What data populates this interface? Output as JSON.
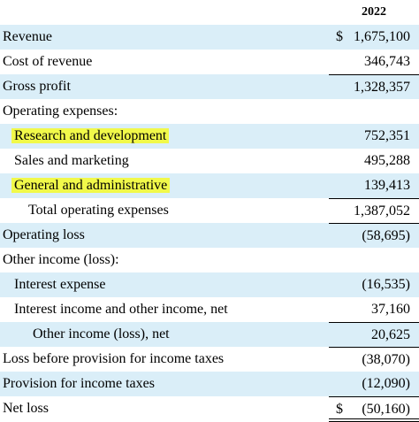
{
  "header": {
    "year": "2022"
  },
  "rows": [
    {
      "label": "Revenue",
      "currency": "$",
      "value": "1,675,100"
    },
    {
      "label": "Cost of revenue",
      "currency": "",
      "value": "346,743"
    },
    {
      "label": "Gross profit",
      "currency": "",
      "value": "1,328,357"
    },
    {
      "label": "Operating expenses:",
      "currency": "",
      "value": ""
    },
    {
      "label": "Research and development",
      "currency": "",
      "value": "752,351"
    },
    {
      "label": "Sales and marketing",
      "currency": "",
      "value": "495,288"
    },
    {
      "label": "General and administrative",
      "currency": "",
      "value": "139,413"
    },
    {
      "label": "Total operating expenses",
      "currency": "",
      "value": "1,387,052"
    },
    {
      "label": "Operating loss",
      "currency": "",
      "value": "(58,695)"
    },
    {
      "label": "Other income (loss):",
      "currency": "",
      "value": ""
    },
    {
      "label": "Interest expense",
      "currency": "",
      "value": "(16,535)"
    },
    {
      "label": "Interest income and other income, net",
      "currency": "",
      "value": "37,160"
    },
    {
      "label": "Other income (loss), net",
      "currency": "",
      "value": "20,625"
    },
    {
      "label": "Loss before provision for income taxes",
      "currency": "",
      "value": "(38,070)"
    },
    {
      "label": "Provision for income taxes",
      "currency": "",
      "value": "(12,090)"
    },
    {
      "label": "Net loss",
      "currency": "$",
      "value": "(50,160)"
    }
  ],
  "colors": {
    "row_shade": "#daeef8",
    "highlight": "#f1f94a"
  }
}
